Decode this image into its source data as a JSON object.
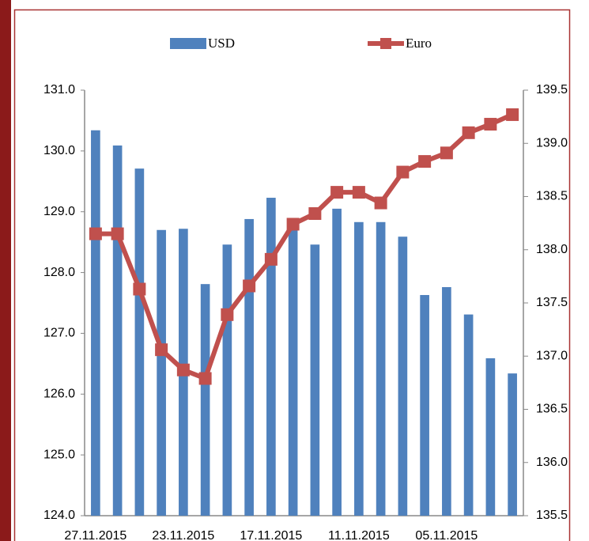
{
  "chart_data": {
    "type": "bar_line",
    "categories": [
      "27.11.2015",
      null,
      null,
      null,
      "23.11.2015",
      null,
      null,
      null,
      "17.11.2015",
      null,
      null,
      null,
      "11.11.2015",
      null,
      null,
      null,
      "05.11.2015",
      null,
      null,
      null
    ],
    "series": [
      {
        "name": "USD",
        "color": "#4f81bd",
        "type": "bar",
        "values": [
          130.34,
          130.09,
          129.71,
          128.7,
          128.72,
          127.81,
          128.46,
          128.88,
          129.23,
          128.71,
          128.46,
          129.05,
          128.83,
          128.83,
          128.59,
          127.63,
          127.76,
          127.31,
          126.59,
          126.34
        ]
      },
      {
        "name": "Euro",
        "color": "#c0504d",
        "type": "line",
        "axis": "y2",
        "values": [
          138.15,
          138.15,
          137.63,
          137.06,
          136.87,
          136.79,
          137.39,
          137.66,
          137.91,
          138.24,
          138.34,
          138.54,
          138.54,
          138.44,
          138.73,
          138.83,
          138.91,
          139.1,
          139.18,
          139.27
        ]
      }
    ],
    "ylim": [
      124,
      131
    ],
    "yticks": [
      {
        "value": 124,
        "label": "124.0"
      },
      {
        "value": 125,
        "label": "125.0"
      },
      {
        "value": 126,
        "label": "126.0"
      },
      {
        "value": 127,
        "label": "127.0"
      },
      {
        "value": 128,
        "label": "128.0"
      },
      {
        "value": 129,
        "label": "129.0"
      },
      {
        "value": 130,
        "label": "130.0"
      },
      {
        "value": 131,
        "label": "131.0"
      }
    ],
    "y2lim": [
      135.5,
      139.5
    ],
    "y2ticks": [
      {
        "value": 135.5,
        "label": "135.5"
      },
      {
        "value": 136,
        "label": "136.0"
      },
      {
        "value": 136.5,
        "label": "136.5"
      },
      {
        "value": 137,
        "label": "137.0"
      },
      {
        "value": 137.5,
        "label": "137.5"
      },
      {
        "value": 138,
        "label": "138.0"
      },
      {
        "value": 138.5,
        "label": "138.5"
      },
      {
        "value": 139,
        "label": "139.0"
      },
      {
        "value": 139.5,
        "label": "139.5"
      }
    ],
    "legend": "top"
  }
}
